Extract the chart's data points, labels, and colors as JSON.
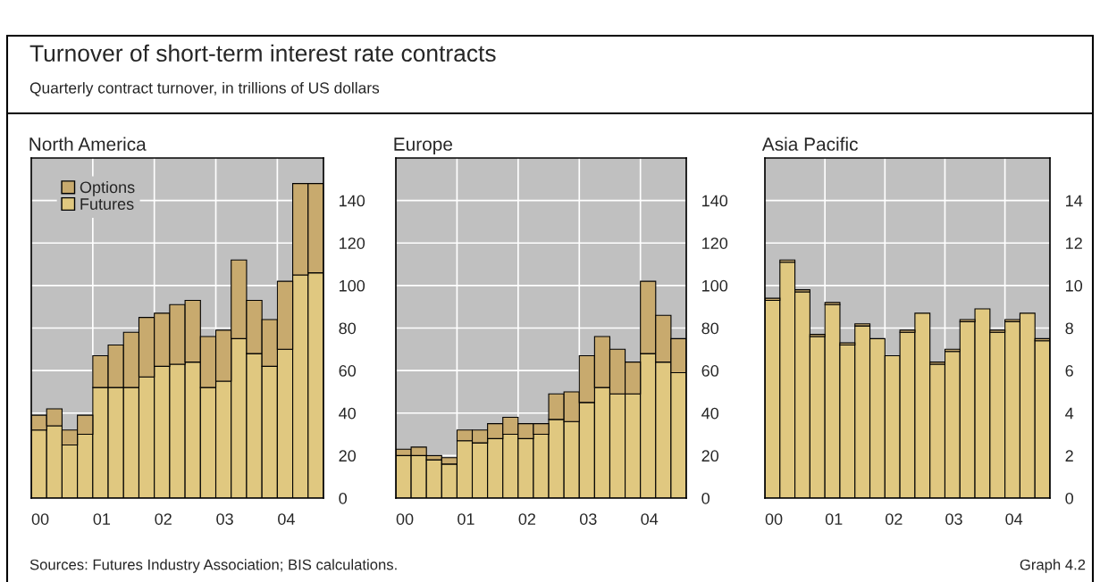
{
  "chart_data": [
    {
      "type": "bar",
      "title": "North America",
      "stacked": true,
      "grid": true,
      "legend": "top left",
      "annotations": [
        "Turnover of short-term interest rate contracts",
        "Quarterly contract turnover, in trillions of US dollars",
        "Sources: Futures Industry Association; BIS calculations.",
        "Graph 4.2"
      ],
      "categories": [
        "00",
        null,
        null,
        null,
        "01",
        null,
        null,
        null,
        "02",
        null,
        null,
        null,
        "03",
        null,
        null,
        null,
        "04",
        null,
        null
      ],
      "series": [
        {
          "name": "Futures",
          "color": "#e0c880",
          "values": [
            32,
            34,
            25,
            30,
            52,
            52,
            52,
            57,
            62,
            63,
            64,
            52,
            55,
            75,
            68,
            62,
            70,
            105,
            106
          ]
        },
        {
          "name": "Options",
          "color": "#c8aa6e",
          "values": [
            7,
            8,
            7,
            9,
            15,
            20,
            26,
            28,
            25,
            28,
            29,
            24,
            24,
            37,
            25,
            22,
            32,
            43,
            42
          ]
        }
      ],
      "ylim": [
        0,
        160
      ],
      "yticks": [
        0,
        20,
        40,
        60,
        80,
        100,
        120,
        140
      ]
    },
    {
      "type": "bar",
      "title": "Europe",
      "stacked": true,
      "grid": true,
      "categories": [
        "00",
        null,
        null,
        null,
        "01",
        null,
        null,
        null,
        "02",
        null,
        null,
        null,
        "03",
        null,
        null,
        null,
        "04",
        null,
        null
      ],
      "series": [
        {
          "color": "#e0c880",
          "values": [
            20,
            20,
            18,
            16,
            27,
            26,
            28,
            30,
            28,
            30,
            37,
            36,
            45,
            52,
            49,
            49,
            68,
            64,
            59
          ]
        },
        {
          "color": "#c8aa6e",
          "values": [
            3,
            4,
            2,
            3,
            5,
            6,
            7,
            8,
            7,
            5,
            12,
            14,
            22,
            24,
            21,
            15,
            34,
            22,
            16
          ]
        }
      ],
      "ylim": [
        0,
        160
      ],
      "yticks": [
        0,
        20,
        40,
        60,
        80,
        100,
        120,
        140
      ]
    },
    {
      "type": "bar",
      "title": "Asia Pacific",
      "stacked": true,
      "grid": true,
      "categories": [
        "00",
        null,
        null,
        null,
        "01",
        null,
        null,
        null,
        "02",
        null,
        null,
        null,
        "03",
        null,
        null,
        null,
        "04",
        null,
        null
      ],
      "series": [
        {
          "color": "#e0c880",
          "values": [
            9.3,
            11.1,
            9.7,
            7.6,
            9.1,
            7.2,
            8.1,
            7.5,
            6.7,
            7.8,
            8.7,
            6.3,
            6.9,
            8.3,
            8.9,
            7.8,
            8.3,
            8.7,
            7.4
          ]
        },
        {
          "color": "#c8aa6e",
          "values": [
            0.1,
            0.1,
            0.1,
            0.1,
            0.1,
            0.1,
            0.1,
            0,
            0,
            0.1,
            0,
            0.1,
            0.1,
            0.1,
            0,
            0.1,
            0.1,
            0,
            0.1
          ]
        }
      ],
      "ylim": [
        0,
        16
      ],
      "yticks": [
        0,
        2,
        4,
        6,
        8,
        10,
        12,
        14
      ]
    }
  ]
}
